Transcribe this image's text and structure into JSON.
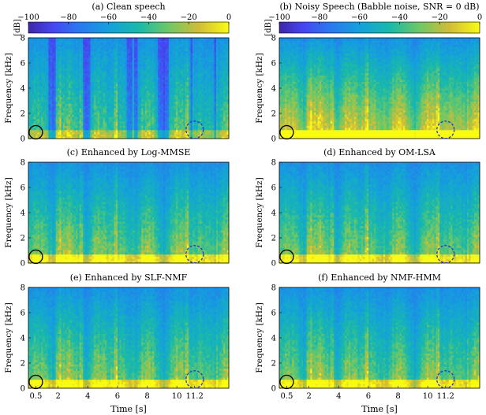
{
  "chart_data": [
    {
      "type": "heatmap",
      "title": "(a) Clean speech",
      "ylabel": "Frequency [kHz]",
      "xlabel": "",
      "yticks": [
        0,
        2,
        4,
        6,
        8
      ],
      "xticks": [],
      "ylim": [
        0,
        8
      ],
      "xlim": [
        0,
        13.5
      ],
      "colorbar": {
        "label": "[dB]",
        "ticks": [
          -100,
          -80,
          -60,
          -40,
          -20,
          0
        ],
        "range": [
          -100,
          0
        ]
      },
      "noise_floor": "low",
      "markers": [
        {
          "shape": "circle",
          "style": "solid",
          "color": "#000000",
          "t": 0.5,
          "f": 0.5
        },
        {
          "shape": "circle",
          "style": "dashed",
          "color": "#2233cc",
          "t": 11.2,
          "f": 0.7
        }
      ]
    },
    {
      "type": "heatmap",
      "title": "(b) Noisy Speech (Babble noise, SNR = 0 dB)",
      "ylabel": "Frequency [kHz]",
      "xlabel": "",
      "yticks": [
        0,
        2,
        4,
        6,
        8
      ],
      "xticks": [],
      "ylim": [
        0,
        8
      ],
      "xlim": [
        0,
        13.5
      ],
      "colorbar": {
        "label": "[dB]",
        "ticks": [
          -100,
          -80,
          -60,
          -40,
          -20,
          0
        ],
        "range": [
          -100,
          0
        ]
      },
      "noise_floor": "high",
      "markers": [
        {
          "shape": "circle",
          "style": "solid",
          "color": "#000000",
          "t": 0.5,
          "f": 0.5
        },
        {
          "shape": "circle",
          "style": "dashed",
          "color": "#2233cc",
          "t": 11.2,
          "f": 0.7
        }
      ]
    },
    {
      "type": "heatmap",
      "title": "(c) Enhanced by Log-MMSE",
      "ylabel": "Frequency [kHz]",
      "xlabel": "",
      "yticks": [
        0,
        2,
        4,
        6,
        8
      ],
      "xticks": [],
      "ylim": [
        0,
        8
      ],
      "xlim": [
        0,
        13.5
      ],
      "noise_floor": "medium",
      "markers": [
        {
          "shape": "circle",
          "style": "solid",
          "color": "#000000",
          "t": 0.5,
          "f": 0.5
        },
        {
          "shape": "circle",
          "style": "dashed",
          "color": "#2233cc",
          "t": 11.2,
          "f": 0.7
        }
      ]
    },
    {
      "type": "heatmap",
      "title": "(d) Enhanced by OM-LSA",
      "ylabel": "Frequency [kHz]",
      "xlabel": "",
      "yticks": [
        0,
        2,
        4,
        6,
        8
      ],
      "xticks": [],
      "ylim": [
        0,
        8
      ],
      "xlim": [
        0,
        13.5
      ],
      "noise_floor": "medium",
      "markers": [
        {
          "shape": "circle",
          "style": "solid",
          "color": "#000000",
          "t": 0.5,
          "f": 0.5
        },
        {
          "shape": "circle",
          "style": "dashed",
          "color": "#2233cc",
          "t": 11.2,
          "f": 0.7
        }
      ]
    },
    {
      "type": "heatmap",
      "title": "(e) Enhanced by SLF-NMF",
      "ylabel": "Frequency [kHz]",
      "xlabel": "Time [s]",
      "yticks": [
        0,
        2,
        4,
        6,
        8
      ],
      "xticks": [
        0.5,
        2,
        4,
        6,
        8,
        10,
        11.2
      ],
      "ylim": [
        0,
        8
      ],
      "xlim": [
        0,
        13.5
      ],
      "noise_floor": "medium",
      "markers": [
        {
          "shape": "circle",
          "style": "solid",
          "color": "#000000",
          "t": 0.5,
          "f": 0.5
        },
        {
          "shape": "circle",
          "style": "dashed",
          "color": "#2233cc",
          "t": 11.2,
          "f": 0.7
        }
      ]
    },
    {
      "type": "heatmap",
      "title": "(f) Enhanced by NMF-HMM",
      "ylabel": "Frequency [kHz]",
      "xlabel": "Time [s]",
      "yticks": [
        0,
        2,
        4,
        6,
        8
      ],
      "xticks": [
        0.5,
        2,
        4,
        6,
        8,
        10,
        11.2
      ],
      "ylim": [
        0,
        8
      ],
      "xlim": [
        0,
        13.5
      ],
      "noise_floor": "medium",
      "markers": [
        {
          "shape": "circle",
          "style": "solid",
          "color": "#000000",
          "t": 0.5,
          "f": 0.5
        },
        {
          "shape": "circle",
          "style": "dashed",
          "color": "#2233cc",
          "t": 11.2,
          "f": 0.7
        }
      ]
    }
  ]
}
